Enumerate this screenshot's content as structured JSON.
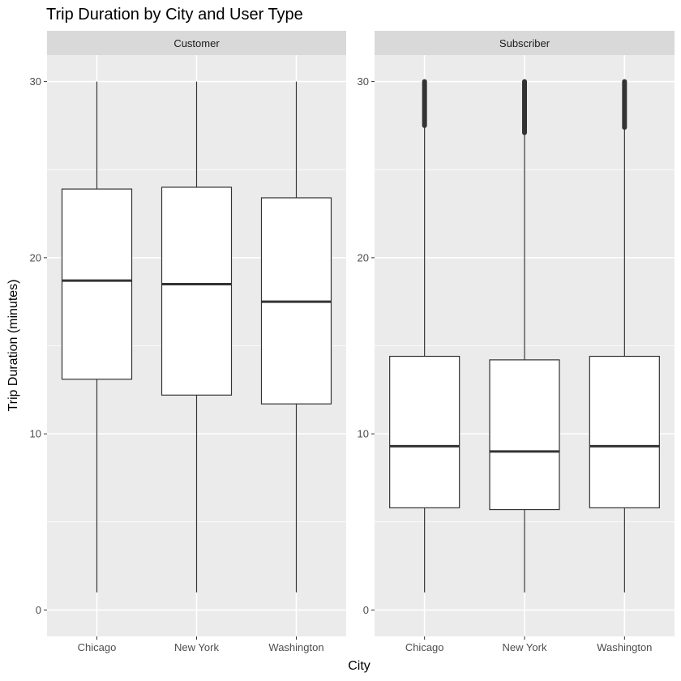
{
  "chart_data": {
    "type": "boxplot",
    "title": "Trip Duration by City and User Type",
    "xlabel": "City",
    "ylabel": "Trip Duration (minutes)",
    "categories": [
      "Chicago",
      "New York",
      "Washington"
    ],
    "ylim": [
      -1.5,
      31.5
    ],
    "yticks": [
      0,
      10,
      20,
      30
    ],
    "facets": [
      {
        "name": "Customer",
        "boxes": [
          {
            "category": "Chicago",
            "min": 1.0,
            "q1": 13.1,
            "median": 18.7,
            "q3": 23.9,
            "max": 30.0,
            "outliers_from": null,
            "outliers_to": null
          },
          {
            "category": "New York",
            "min": 1.0,
            "q1": 12.2,
            "median": 18.5,
            "q3": 24.0,
            "max": 30.0,
            "outliers_from": null,
            "outliers_to": null
          },
          {
            "category": "Washington",
            "min": 1.0,
            "q1": 11.7,
            "median": 17.5,
            "q3": 23.4,
            "max": 30.0,
            "outliers_from": null,
            "outliers_to": null
          }
        ]
      },
      {
        "name": "Subscriber",
        "boxes": [
          {
            "category": "Chicago",
            "min": 1.0,
            "q1": 5.8,
            "median": 9.3,
            "q3": 14.4,
            "max": 27.4,
            "outliers_from": 27.5,
            "outliers_to": 30.0
          },
          {
            "category": "New York",
            "min": 1.0,
            "q1": 5.7,
            "median": 9.0,
            "q3": 14.2,
            "max": 27.0,
            "outliers_from": 27.1,
            "outliers_to": 30.0
          },
          {
            "category": "Washington",
            "min": 1.0,
            "q1": 5.8,
            "median": 9.3,
            "q3": 14.4,
            "max": 27.3,
            "outliers_from": 27.4,
            "outliers_to": 30.0
          }
        ]
      }
    ],
    "colors": {
      "panel_bg": "#ebebeb",
      "strip_bg": "#d9d9d9",
      "grid": "#ffffff",
      "box_fill": "#ffffff",
      "box_stroke": "#333333",
      "tick": "#333333"
    },
    "grid": true,
    "legend": "none"
  }
}
